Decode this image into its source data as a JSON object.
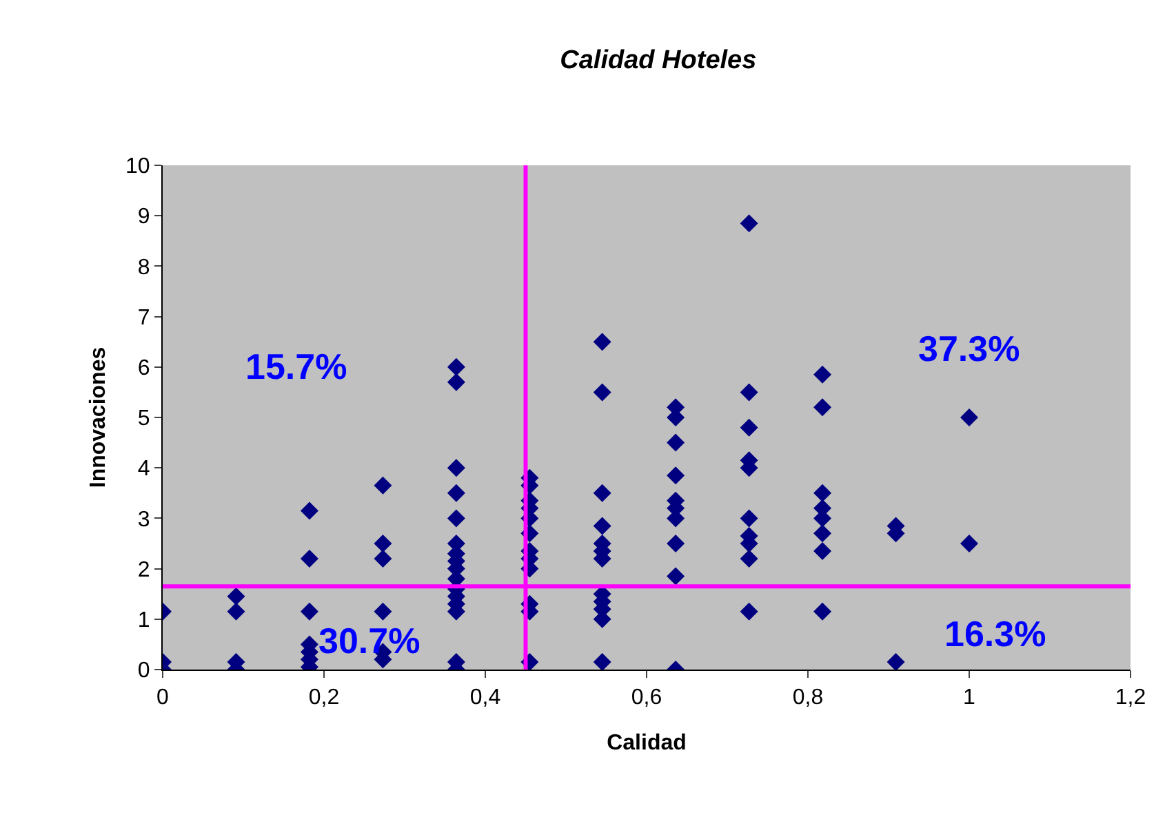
{
  "chart_data": {
    "type": "scatter",
    "title": "Calidad Hoteles",
    "xlabel": "Calidad",
    "ylabel": "Innovaciones",
    "x": [
      0,
      0,
      0,
      0.091,
      0.091,
      0.091,
      0.091,
      0.182,
      0.182,
      0.182,
      0.182,
      0.182,
      0.182,
      0.182,
      0.273,
      0.273,
      0.273,
      0.273,
      0.273,
      0.273,
      0.364,
      0.364,
      0.364,
      0.364,
      0.364,
      0.364,
      0.364,
      0.364,
      0.364,
      0.364,
      0.364,
      0.364,
      0.364,
      0.364,
      0.364,
      0.364,
      0.455,
      0.455,
      0.455,
      0.455,
      0.455,
      0.455,
      0.455,
      0.455,
      0.455,
      0.455,
      0.455,
      0.455,
      0.545,
      0.545,
      0.545,
      0.545,
      0.545,
      0.545,
      0.545,
      0.545,
      0.545,
      0.545,
      0.545,
      0.545,
      0.636,
      0.636,
      0.636,
      0.636,
      0.636,
      0.636,
      0.636,
      0.636,
      0.636,
      0.636,
      0.727,
      0.727,
      0.727,
      0.727,
      0.727,
      0.727,
      0.727,
      0.727,
      0.727,
      0.727,
      0.818,
      0.818,
      0.818,
      0.818,
      0.818,
      0.818,
      0.818,
      0.818,
      0.909,
      0.909,
      0.909,
      1,
      1
    ],
    "series": [
      {
        "color": "#000080",
        "values": [
          1.15,
          0.15,
          0,
          1.45,
          1.15,
          0.15,
          0,
          3.15,
          2.2,
          1.15,
          0.5,
          0.35,
          0.2,
          0.05,
          3.65,
          2.5,
          2.2,
          1.15,
          0.35,
          0.2,
          6,
          5.7,
          4,
          3.5,
          3,
          2.5,
          2.3,
          2.15,
          2,
          1.8,
          1.6,
          1.45,
          1.3,
          1.15,
          0.15,
          0,
          3.8,
          3.65,
          3.35,
          3.2,
          3,
          2.7,
          2.35,
          2.2,
          2,
          1.3,
          1.15,
          0.15,
          6.5,
          5.5,
          3.5,
          2.85,
          2.5,
          2.35,
          2.2,
          1.5,
          1.35,
          1.2,
          1,
          0.15,
          5.2,
          5,
          4.5,
          3.85,
          3.35,
          3.2,
          3,
          2.5,
          1.85,
          0,
          8.85,
          5.5,
          4.8,
          4.15,
          4,
          3,
          2.65,
          2.5,
          2.2,
          1.15,
          5.85,
          5.2,
          3.5,
          3.2,
          3,
          2.7,
          2.35,
          1.15,
          2.85,
          2.7,
          0.15,
          5,
          2.5
        ]
      }
    ],
    "xlim": [
      0,
      1.2
    ],
    "xticks": [
      0,
      {
        "value": 0.2,
        "label": "0,2"
      },
      {
        "value": 0.4,
        "label": "0,4"
      },
      {
        "value": 0.6,
        "label": "0,6"
      },
      {
        "value": 0.8,
        "label": "0,8"
      },
      1,
      {
        "value": 1.2,
        "label": "1,2"
      }
    ],
    "ylim": [
      0,
      10
    ],
    "yticks": [
      0,
      1,
      2,
      3,
      4,
      5,
      6,
      7,
      8,
      9,
      10
    ],
    "grid": false,
    "marker": "diamond",
    "ref_lines": [
      {
        "axis": "x",
        "value": 0.45,
        "color": "#ff00ff"
      },
      {
        "axis": "y",
        "value": 1.65,
        "color": "#ff00ff"
      }
    ],
    "annotations": [
      "15.7%",
      "37.3%",
      "30.7%",
      "16.3%"
    ]
  }
}
